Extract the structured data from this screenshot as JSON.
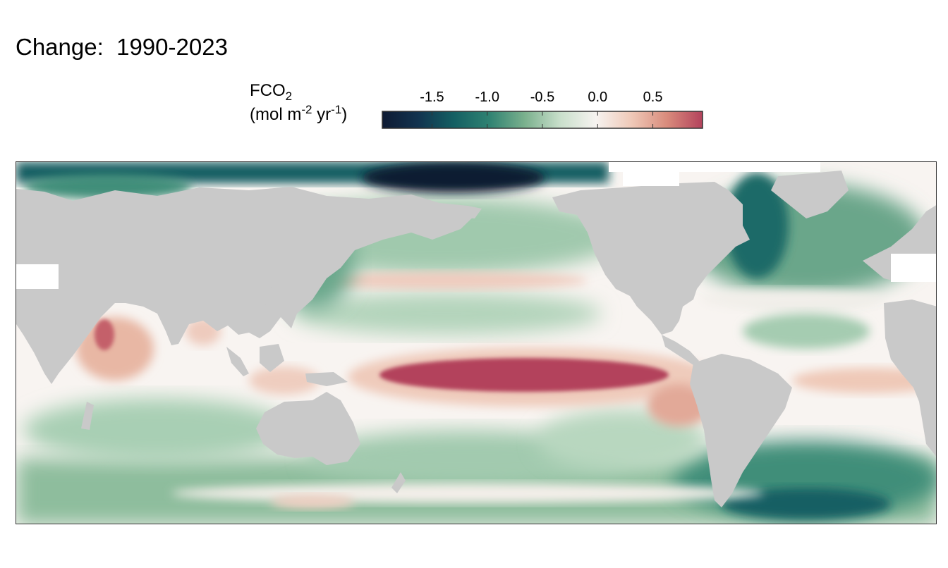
{
  "title": "Change:  1990-2023",
  "legend": {
    "variable": "FCO",
    "variable_sub": "2",
    "units_open": "(mol m",
    "units_exp1": "-2",
    "units_mid": " yr",
    "units_exp2": "-1",
    "units_close": ")",
    "ticks": [
      "-1.5",
      "-1.0",
      "-0.5",
      "0.0",
      "0.5"
    ],
    "tick_values": [
      -1.5,
      -1.0,
      -0.5,
      0.0,
      0.5
    ],
    "range": [
      -1.95,
      0.95
    ],
    "palette": [
      "#0e1a33",
      "#12334f",
      "#145f63",
      "#2f8272",
      "#7ab08d",
      "#c9dfcb",
      "#f6f3f0",
      "#efc9b8",
      "#d98b7c",
      "#b3425c"
    ]
  },
  "colors": {
    "land": "#c9c9c9",
    "no_data": "#ffffff",
    "frame": "#333333"
  },
  "chart_data": {
    "type": "heatmap",
    "title": "Change:  1990-2023",
    "colorbar_label": "FCO2 (mol m-2 yr-1)",
    "colorbar_ticks": [
      -1.5,
      -1.0,
      -0.5,
      0.0,
      0.5
    ],
    "colorbar_range": [
      -1.95,
      0.95
    ],
    "projection": "global, Pacific-centred"
  }
}
